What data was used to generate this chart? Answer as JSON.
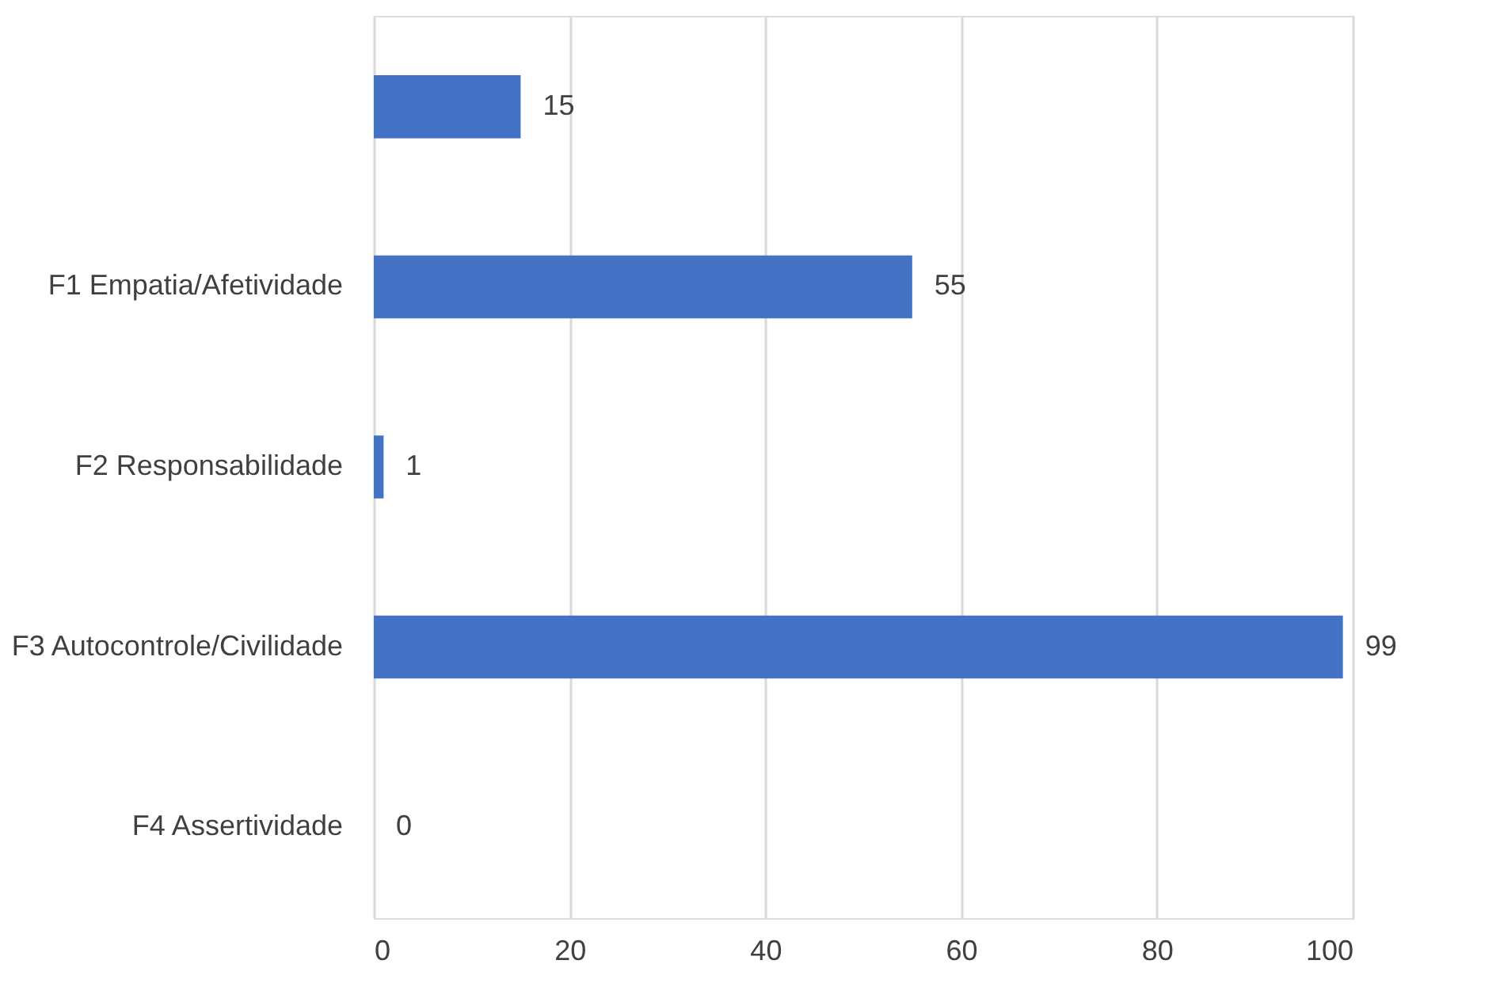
{
  "chart_data": {
    "type": "bar",
    "orientation": "horizontal",
    "categories": [
      null,
      "F1 Empatia/Afetividade",
      "F2 Responsabilidade",
      "F3 Autocontrole/Civilidade",
      "F4 Assertividade"
    ],
    "values": [
      15,
      55,
      1,
      99,
      0
    ],
    "color": "#4472c4",
    "xlim": [
      0,
      100
    ],
    "xticks": [
      0,
      20,
      40,
      60,
      80,
      100
    ],
    "grid": "x",
    "data_labels": true
  }
}
